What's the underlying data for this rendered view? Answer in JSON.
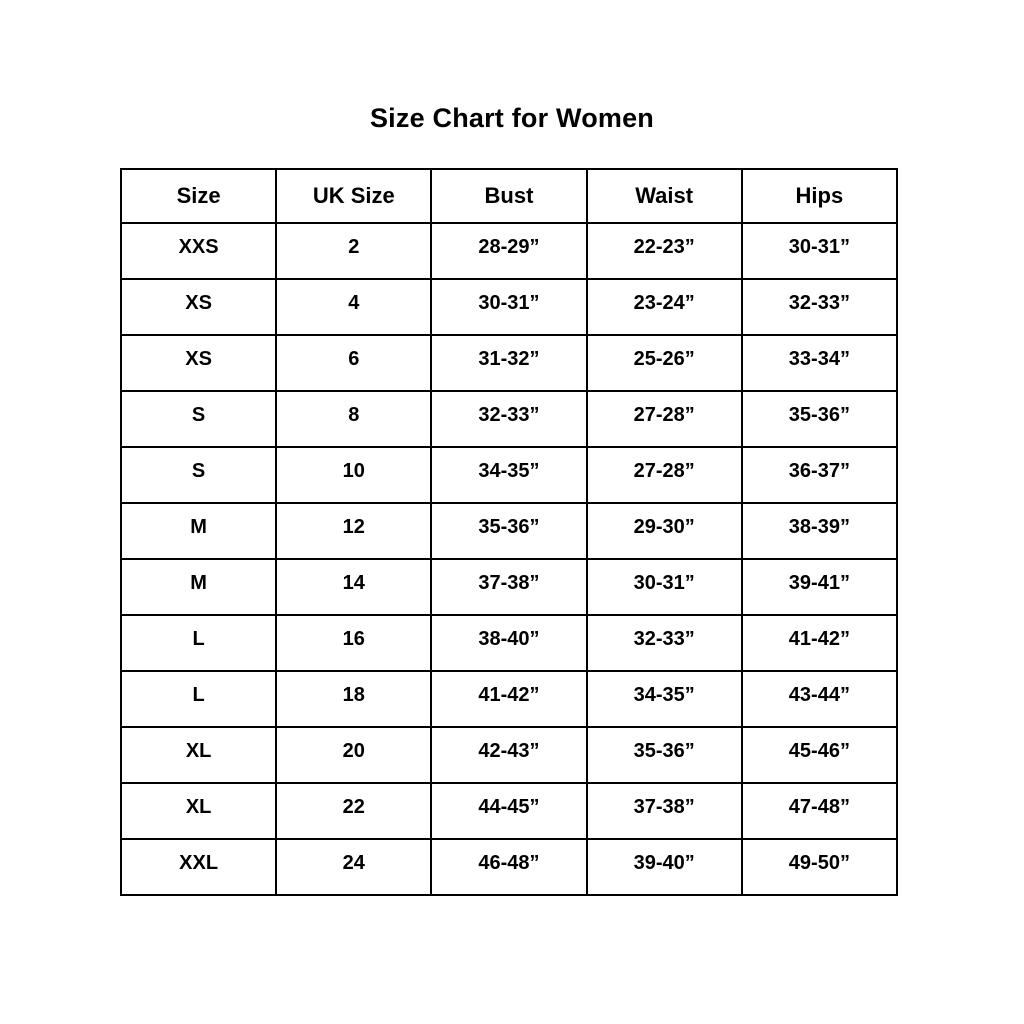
{
  "page": {
    "title": "Size Chart for Women"
  },
  "colors": {
    "background": "#ffffff",
    "border": "#000000",
    "text": "#000000"
  },
  "chart_data": {
    "type": "table",
    "title": "Size Chart for Women",
    "columns": [
      "Size",
      "UK Size",
      "Bust",
      "Waist",
      "Hips"
    ],
    "rows": [
      [
        "XXS",
        "2",
        "28-29”",
        "22-23”",
        "30-31”"
      ],
      [
        "XS",
        "4",
        "30-31”",
        "23-24”",
        "32-33”"
      ],
      [
        "XS",
        "6",
        "31-32”",
        "25-26”",
        "33-34”"
      ],
      [
        "S",
        "8",
        "32-33”",
        "27-28”",
        "35-36”"
      ],
      [
        "S",
        "10",
        "34-35”",
        "27-28”",
        "36-37”"
      ],
      [
        "M",
        "12",
        "35-36”",
        "29-30”",
        "38-39”"
      ],
      [
        "M",
        "14",
        "37-38”",
        "30-31”",
        "39-41”"
      ],
      [
        "L",
        "16",
        "38-40”",
        "32-33”",
        "41-42”"
      ],
      [
        "L",
        "18",
        "41-42”",
        "34-35”",
        "43-44”"
      ],
      [
        "XL",
        "20",
        "42-43”",
        "35-36”",
        "45-46”"
      ],
      [
        "XL",
        "22",
        "44-45”",
        "37-38”",
        "47-48”"
      ],
      [
        "XXL",
        "24",
        "46-48”",
        "39-40”",
        "49-50”"
      ]
    ]
  }
}
